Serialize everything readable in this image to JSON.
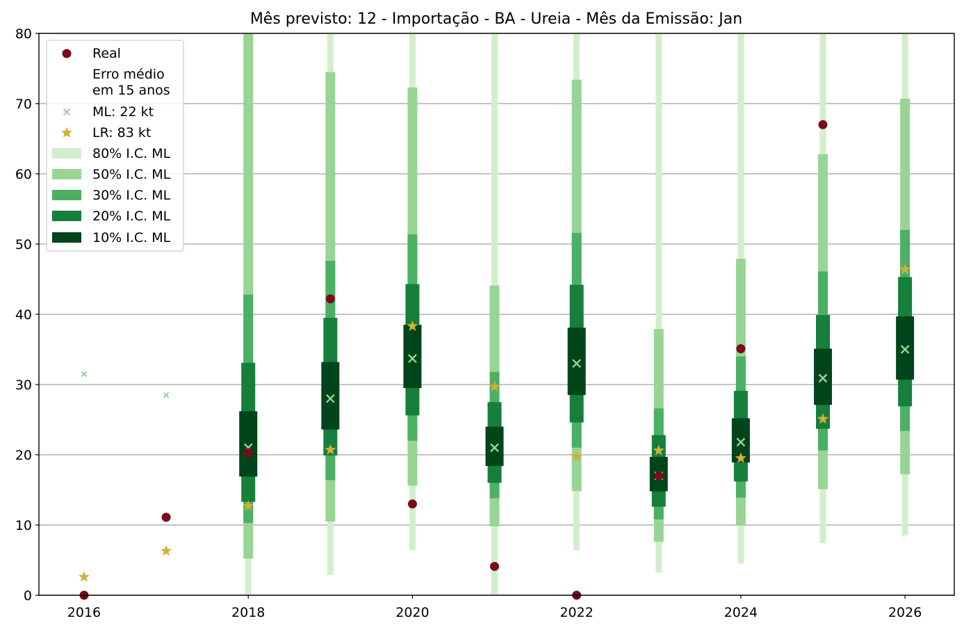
{
  "chart_data": {
    "type": "interval-range",
    "title": "Mês previsto: 12 - Importação - BA - Ureia - Mês da Emissão: Jan",
    "xlabel": "",
    "ylabel": "",
    "xlim": [
      2015.45,
      2026.6
    ],
    "ylim": [
      0,
      80
    ],
    "x_ticks": [
      2016,
      2018,
      2020,
      2022,
      2024,
      2026
    ],
    "y_ticks": [
      0,
      10,
      20,
      30,
      40,
      50,
      60,
      70,
      80
    ],
    "grid": "horizontal",
    "legend_position": "top-left",
    "legend": {
      "real": "Real",
      "error_note": "Erro médio\nem 15 anos",
      "ml": "ML: 22 kt",
      "lr": "LR: 83 kt",
      "ci80": "80% I.C. ML",
      "ci50": "50% I.C. ML",
      "ci30": "30% I.C. ML",
      "ci20": "20% I.C. ML",
      "ci10": "10% I.C. ML"
    },
    "colors": {
      "real": "#7b0a1e",
      "ml": "#98d594",
      "lr": "#d4ae36",
      "ci80": "#d3eecd",
      "ci50": "#98d594",
      "ci30": "#4bb062",
      "ci20": "#157f3b",
      "ci10": "#00441b",
      "grid": "#b0b0b0"
    },
    "years": [
      2016,
      2017,
      2018,
      2019,
      2020,
      2021,
      2022,
      2023,
      2024,
      2025,
      2026
    ],
    "real": [
      0,
      11.1,
      20.3,
      42.2,
      13.0,
      4.1,
      0,
      17.0,
      35.1,
      67.0,
      null
    ],
    "ml": [
      31.5,
      28.5,
      21.0,
      28.0,
      33.7,
      21.0,
      33.0,
      17.0,
      21.8,
      30.9,
      35.0
    ],
    "lr": [
      2.6,
      6.3,
      12.7,
      20.7,
      38.3,
      29.7,
      19.7,
      20.6,
      19.5,
      25.1,
      46.4
    ],
    "intervals": [
      {
        "year": 2018,
        "ci80": [
          0,
          81
        ],
        "ci50": [
          5.2,
          81
        ],
        "ci30": [
          10.3,
          42.8
        ],
        "ci20": [
          13.3,
          33.1
        ],
        "ci10": [
          16.9,
          26.2
        ]
      },
      {
        "year": 2019,
        "ci80": [
          2.9,
          81
        ],
        "ci50": [
          10.5,
          74.5
        ],
        "ci30": [
          16.4,
          47.6
        ],
        "ci20": [
          19.9,
          39.5
        ],
        "ci10": [
          23.6,
          33.2
        ]
      },
      {
        "year": 2020,
        "ci80": [
          6.4,
          81
        ],
        "ci50": [
          15.6,
          72.3
        ],
        "ci30": [
          22.0,
          51.4
        ],
        "ci20": [
          25.6,
          44.3
        ],
        "ci10": [
          29.5,
          38.5
        ]
      },
      {
        "year": 2021,
        "ci80": [
          0,
          81
        ],
        "ci50": [
          9.8,
          44.1
        ],
        "ci30": [
          13.8,
          31.8
        ],
        "ci20": [
          16.0,
          27.5
        ],
        "ci10": [
          18.4,
          24.0
        ]
      },
      {
        "year": 2022,
        "ci80": [
          6.4,
          81
        ],
        "ci50": [
          14.8,
          73.4
        ],
        "ci30": [
          21.0,
          51.6
        ],
        "ci20": [
          24.6,
          44.2
        ],
        "ci10": [
          28.5,
          38.1
        ]
      },
      {
        "year": 2023,
        "ci80": [
          3.2,
          81
        ],
        "ci50": [
          7.6,
          37.9
        ],
        "ci30": [
          10.8,
          26.6
        ],
        "ci20": [
          12.6,
          22.8
        ],
        "ci10": [
          14.8,
          19.7
        ]
      },
      {
        "year": 2024,
        "ci80": [
          4.5,
          81
        ],
        "ci50": [
          9.9,
          47.9
        ],
        "ci30": [
          13.9,
          34.0
        ],
        "ci20": [
          16.2,
          29.1
        ],
        "ci10": [
          18.9,
          25.2
        ]
      },
      {
        "year": 2025,
        "ci80": [
          7.4,
          81
        ],
        "ci50": [
          15.1,
          62.8
        ],
        "ci30": [
          20.6,
          46.1
        ],
        "ci20": [
          23.7,
          39.9
        ],
        "ci10": [
          27.1,
          35.1
        ]
      },
      {
        "year": 2026,
        "ci80": [
          8.5,
          81
        ],
        "ci50": [
          17.2,
          70.7
        ],
        "ci30": [
          23.4,
          52.0
        ],
        "ci20": [
          26.9,
          45.3
        ],
        "ci10": [
          30.7,
          39.7
        ]
      }
    ]
  }
}
